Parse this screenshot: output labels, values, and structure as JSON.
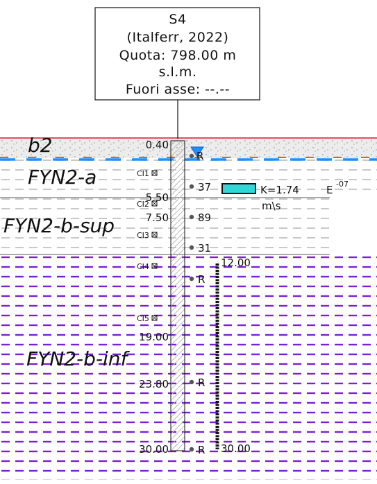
{
  "header": {
    "id": "S4",
    "source": "(Italferr, 2022)",
    "elevation": "Quota: 798.00 m",
    "elevation_ref": "s.l.m.",
    "offset": "Fuori asse: --.--"
  },
  "units": [
    {
      "label": "b2",
      "top": 0,
      "bottom": 0.4,
      "pattern": "fill"
    },
    {
      "label": "FYN2-a",
      "top": 0.4,
      "bottom": 5.5,
      "pattern": "grey-dash"
    },
    {
      "label": "FYN2-b-sup",
      "top": 5.5,
      "bottom": 12.0,
      "pattern": "grey-dash"
    },
    {
      "label": "FYN2-b-inf",
      "top": 12.0,
      "bottom": 30.0,
      "pattern": "purple-dash"
    }
  ],
  "depth_labels": [
    "0.40",
    "5.50",
    "7.50",
    "19.00",
    "23.80",
    "30.00"
  ],
  "spt": [
    "R",
    "37",
    "89",
    "31",
    "R",
    "R",
    "R"
  ],
  "samples": [
    "CI1",
    "CI2",
    "CI3",
    "CI4",
    "CI5"
  ],
  "permeability": {
    "value": "K=1.74",
    "exp_base": "E",
    "exp": "-07",
    "unit": "m\\s"
  },
  "piezometer": {
    "top": "12.00",
    "bottom": "30.00"
  },
  "colors": {
    "purple": "#7a1fd6",
    "water": "#1e90ff",
    "cyan": "#33d6d6",
    "orange": "#cc6b1a",
    "red": "#d11a2a"
  }
}
